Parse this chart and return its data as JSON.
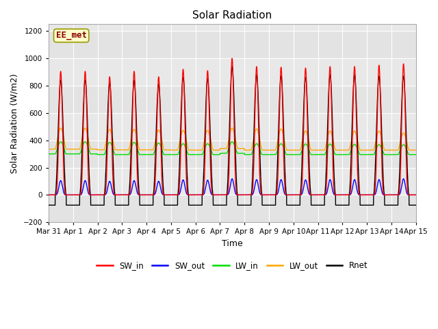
{
  "title": "Solar Radiation",
  "xlabel": "Time",
  "ylabel": "Solar Radiation (W/m2)",
  "ylim": [
    -200,
    1250
  ],
  "yticks": [
    -200,
    0,
    200,
    400,
    600,
    800,
    1000,
    1200
  ],
  "x_tick_labels": [
    "Mar 31",
    "Apr 1",
    "Apr 2",
    "Apr 3",
    "Apr 4",
    "Apr 5",
    "Apr 6",
    "Apr 7",
    "Apr 8",
    "Apr 9",
    "Apr 10",
    "Apr 11",
    "Apr 12",
    "Apr 13",
    "Apr 14",
    "Apr 15"
  ],
  "colors": {
    "SW_in": "#ff0000",
    "SW_out": "#0000ff",
    "LW_in": "#00dd00",
    "LW_out": "#ffa500",
    "Rnet": "#000000"
  },
  "fig_bg": "#ffffff",
  "plot_bg": "#e8e8e8",
  "band_bg": "#f0f0f0",
  "watermark_text": "EE_met",
  "watermark_color": "#8b0000",
  "watermark_bg": "#ffffcc",
  "watermark_edge": "#999900",
  "n_days": 15,
  "n_points_per_day": 288,
  "SW_in_peaks": [
    905,
    905,
    865,
    905,
    865,
    920,
    910,
    1000,
    940,
    935,
    930,
    940,
    940,
    950,
    960
  ],
  "SW_out_peaks": [
    105,
    105,
    100,
    105,
    100,
    110,
    108,
    118,
    112,
    112,
    110,
    112,
    112,
    112,
    118
  ],
  "LW_in_night": [
    300,
    300,
    295,
    295,
    295,
    295,
    295,
    305,
    295,
    295,
    295,
    295,
    295,
    295,
    295
  ],
  "LW_in_day_add": [
    90,
    90,
    90,
    90,
    85,
    80,
    80,
    85,
    80,
    80,
    78,
    78,
    75,
    73,
    73
  ],
  "LW_out_night": [
    335,
    335,
    330,
    330,
    330,
    328,
    328,
    340,
    328,
    328,
    328,
    328,
    328,
    328,
    328
  ],
  "LW_out_day_add": [
    155,
    155,
    150,
    150,
    145,
    145,
    145,
    150,
    155,
    155,
    140,
    140,
    140,
    140,
    125
  ],
  "Rnet_day_peak": [
    840,
    840,
    820,
    840,
    810,
    860,
    850,
    940,
    880,
    870,
    860,
    880,
    880,
    870,
    870
  ],
  "Rnet_night": [
    -75,
    -75,
    -75,
    -75,
    -75,
    -75,
    -75,
    -75,
    -75,
    -75,
    -75,
    -75,
    -75,
    -75,
    -75
  ],
  "rise": 0.27,
  "set_": 0.72,
  "sharpness_sw": 4,
  "sharpness_lw": 1.5,
  "sharpness_rnet": 2
}
